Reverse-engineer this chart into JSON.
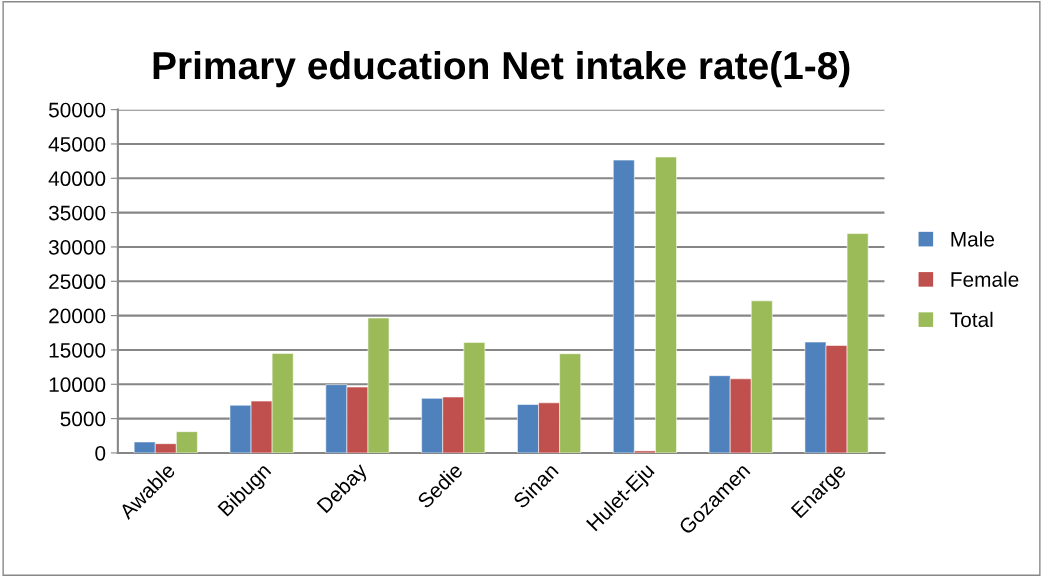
{
  "chart_data": {
    "type": "bar",
    "title": "Primary education Net intake rate(1-8)",
    "categories": [
      "Awable",
      "Bibugn",
      "Debay",
      "Sedie",
      "Sinan",
      "Hulet-Eju",
      "Gozamen",
      "Enarge"
    ],
    "series": [
      {
        "name": "Male",
        "color": "#4f81bd",
        "values": [
          1600,
          6950,
          9950,
          7950,
          7050,
          42650,
          11250,
          16150
        ]
      },
      {
        "name": "Female",
        "color": "#c0504d",
        "values": [
          1350,
          7550,
          9600,
          8150,
          7300,
          300,
          10800,
          15650
        ]
      },
      {
        "name": "Total",
        "color": "#9bbb59",
        "values": [
          3100,
          14500,
          19650,
          16100,
          14450,
          43100,
          22150,
          31950
        ]
      }
    ],
    "ylim": [
      0,
      50000
    ],
    "yticks": [
      0,
      5000,
      10000,
      15000,
      20000,
      25000,
      30000,
      35000,
      40000,
      45000,
      50000
    ],
    "grid": "y",
    "legend": "right"
  }
}
